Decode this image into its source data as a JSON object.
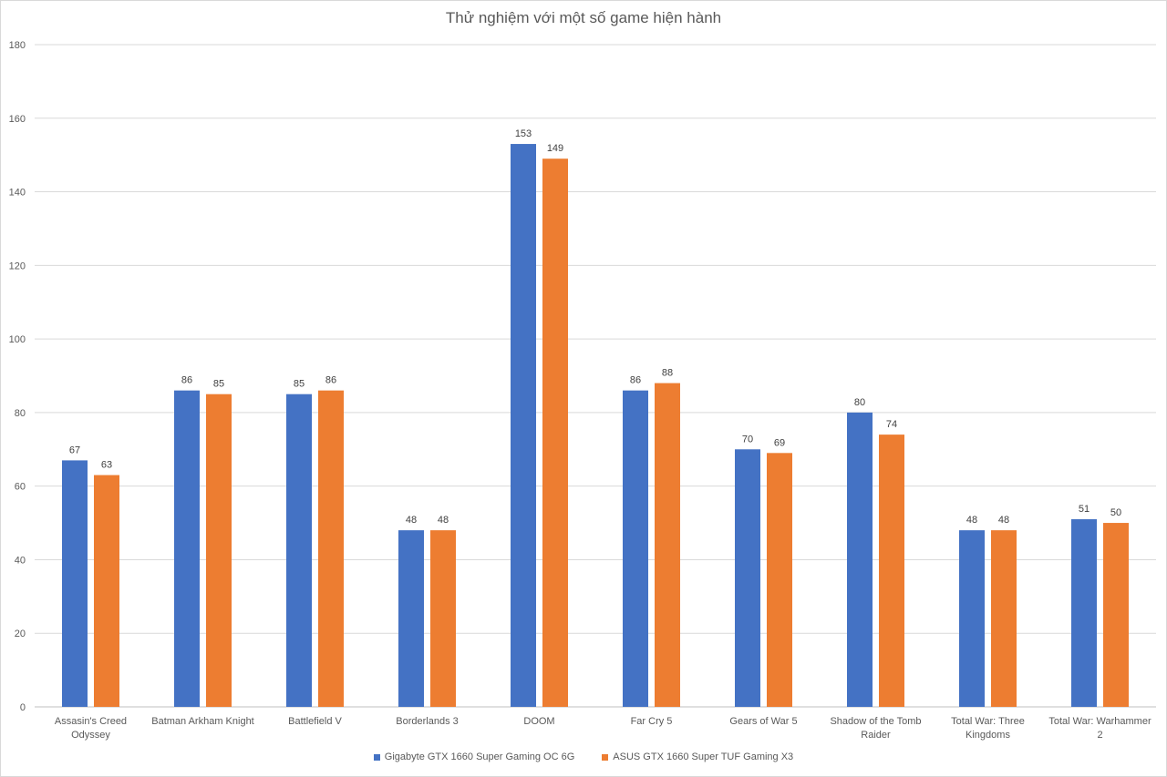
{
  "chart_data": {
    "type": "bar",
    "title": "Thử nghiệm với một số game hiện hành",
    "xlabel": "",
    "ylabel": "",
    "ylim": [
      0,
      180
    ],
    "y_ticks": [
      0,
      20,
      40,
      60,
      80,
      100,
      120,
      140,
      160,
      180
    ],
    "grid": true,
    "legend_position": "bottom",
    "categories": [
      "Assasin's Creed Odyssey",
      "Batman Arkham Knight",
      "Battlefield V",
      "Borderlands 3",
      "DOOM",
      "Far Cry 5",
      "Gears of War 5",
      "Shadow of the Tomb Raider",
      "Total War: Three Kingdoms",
      "Total War: Warhammer 2"
    ],
    "series": [
      {
        "name": "Gigabyte GTX 1660 Super Gaming OC 6G",
        "color": "#4472c4",
        "values": [
          67,
          86,
          85,
          48,
          153,
          86,
          70,
          80,
          48,
          51
        ]
      },
      {
        "name": "ASUS GTX 1660 Super TUF Gaming X3",
        "color": "#ed7d31",
        "values": [
          63,
          85,
          86,
          48,
          149,
          88,
          69,
          74,
          48,
          50
        ]
      }
    ]
  }
}
